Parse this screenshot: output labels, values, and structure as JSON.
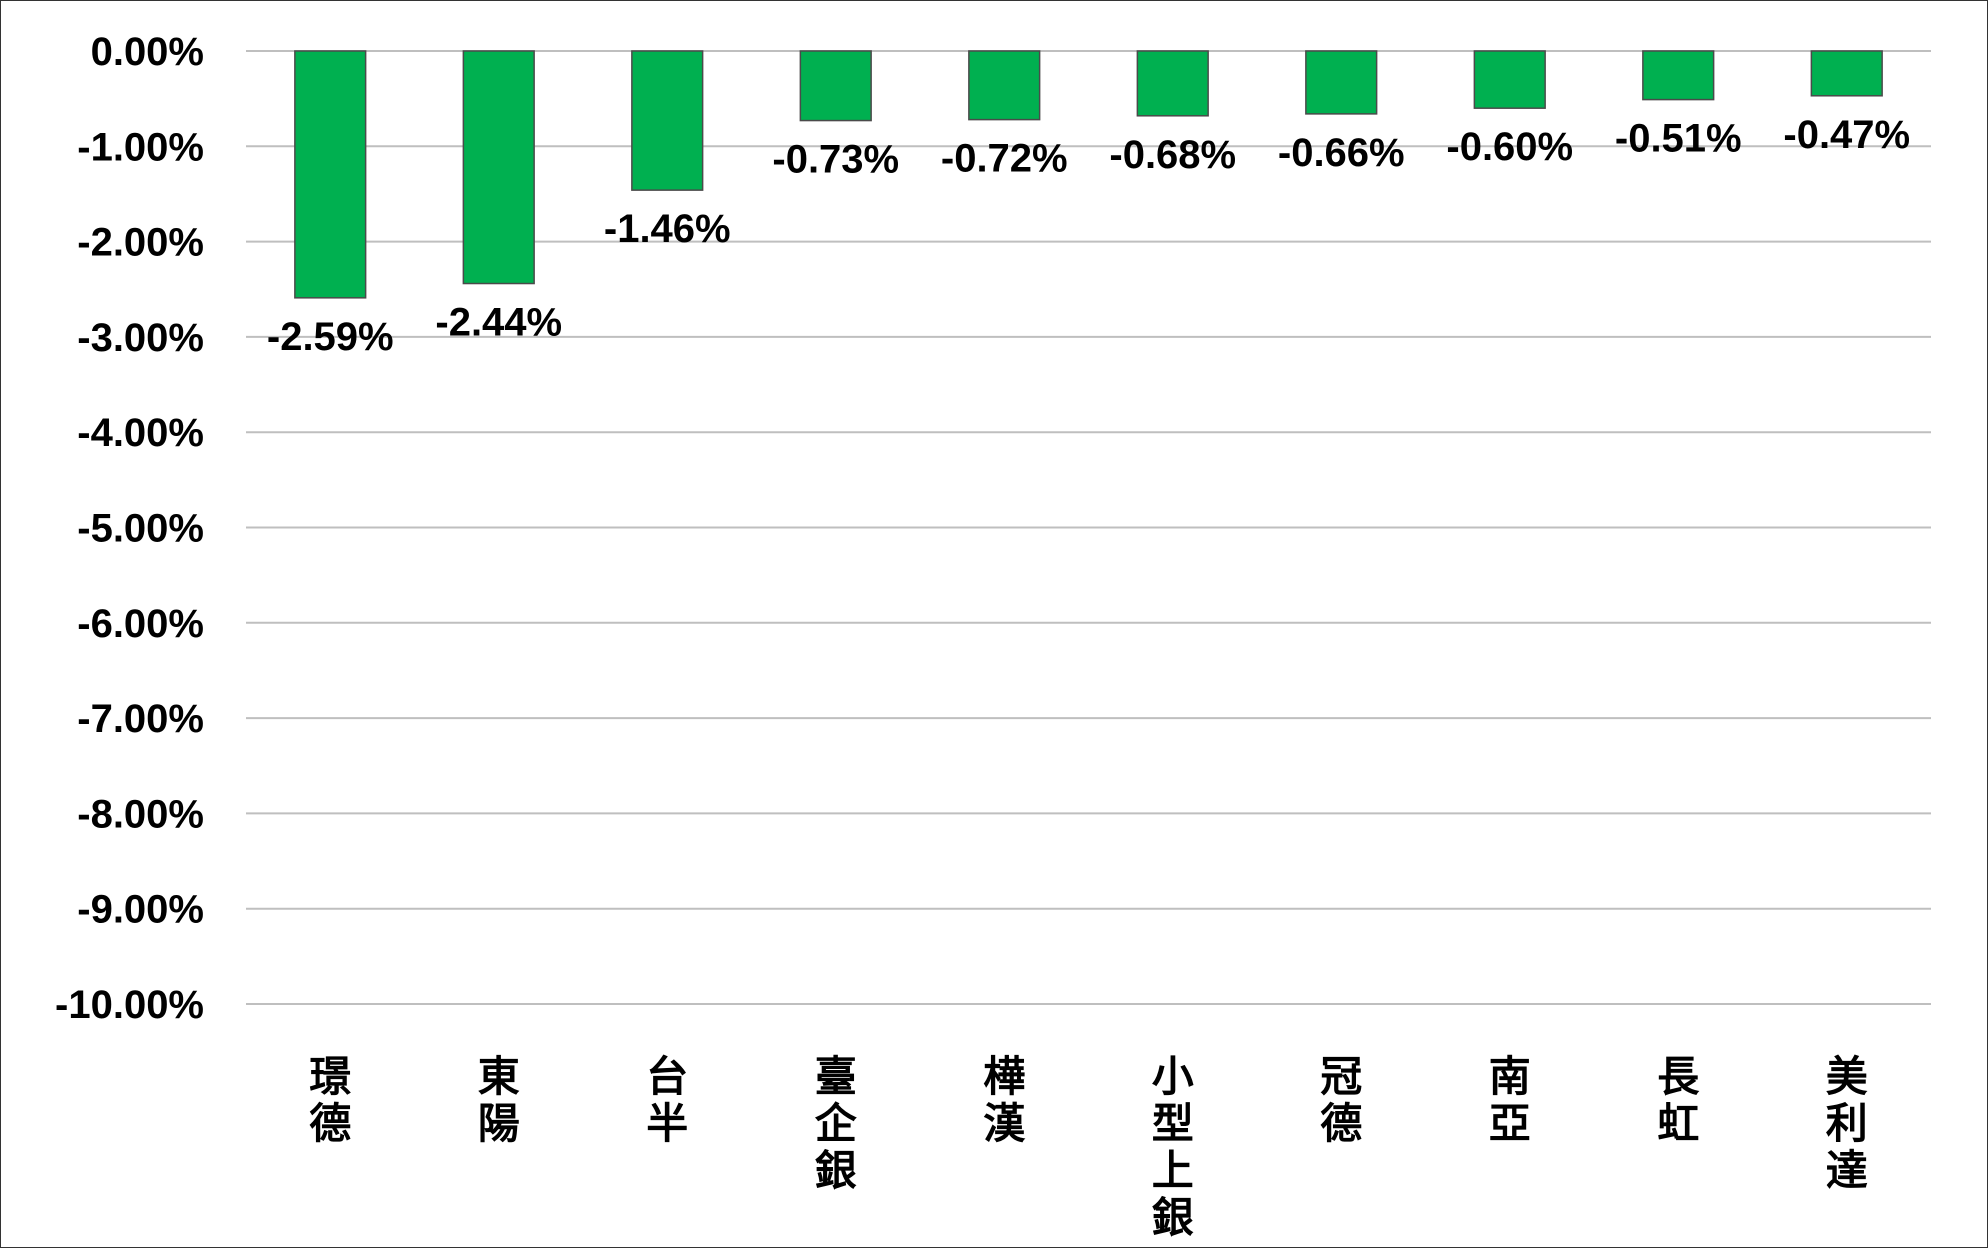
{
  "chart_data": {
    "type": "bar",
    "title": "",
    "xlabel": "",
    "ylabel": "",
    "categories": [
      "璟德",
      "東陽",
      "台半",
      "臺企銀",
      "樺漢",
      "小型上銀",
      "冠德",
      "南亞",
      "長虹",
      "美利達"
    ],
    "values": [
      -2.59,
      -2.44,
      -1.46,
      -0.73,
      -0.72,
      -0.68,
      -0.66,
      -0.6,
      -0.51,
      -0.47
    ],
    "data_labels": [
      "-2.59%",
      "-2.44%",
      "-1.46%",
      "-0.73%",
      "-0.72%",
      "-0.68%",
      "-0.66%",
      "-0.60%",
      "-0.51%",
      "-0.47%"
    ],
    "y_ticks": [
      0,
      -1,
      -2,
      -3,
      -4,
      -5,
      -6,
      -7,
      -8,
      -9,
      -10
    ],
    "y_tick_labels": [
      "0.00%",
      "-1.00%",
      "-2.00%",
      "-3.00%",
      "-4.00%",
      "-5.00%",
      "-6.00%",
      "-7.00%",
      "-8.00%",
      "-9.00%",
      "-10.00%"
    ],
    "ylim": [
      -10,
      0
    ],
    "grid": true,
    "legend": "none",
    "colors": {
      "bar": "#00B050",
      "bar_border": "#4a4a4a",
      "grid": "#bfbfbf"
    }
  }
}
